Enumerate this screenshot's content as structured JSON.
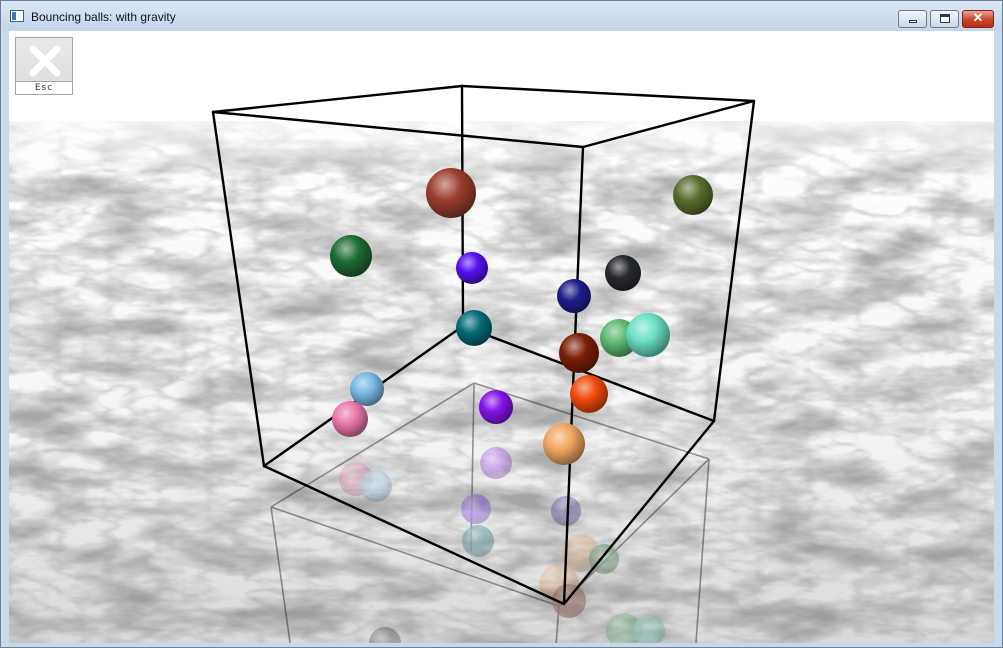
{
  "window": {
    "title": "Bouncing balls: with gravity",
    "icon": "app-window-icon",
    "controls": {
      "minimize_icon": "minimize-icon",
      "maximize_icon": "maximize-icon",
      "close_icon": "close-icon",
      "close_glyph": "✕"
    }
  },
  "overlay": {
    "escape_button": {
      "label": "Esc",
      "icon": "close-x-icon"
    }
  },
  "scene": {
    "floor": "marble-texture",
    "box_color": "#000000",
    "ball_colors": [
      "#9c3f2e",
      "#1e6b35",
      "#5a6e2c",
      "#5510f0",
      "#26292f",
      "#1f1c8c",
      "#046a78",
      "#5db870",
      "#6ae0c4",
      "#7c1e07",
      "#78b8e4",
      "#f04a0a",
      "#e877a8",
      "#8412e8",
      "#f0a660"
    ]
  }
}
